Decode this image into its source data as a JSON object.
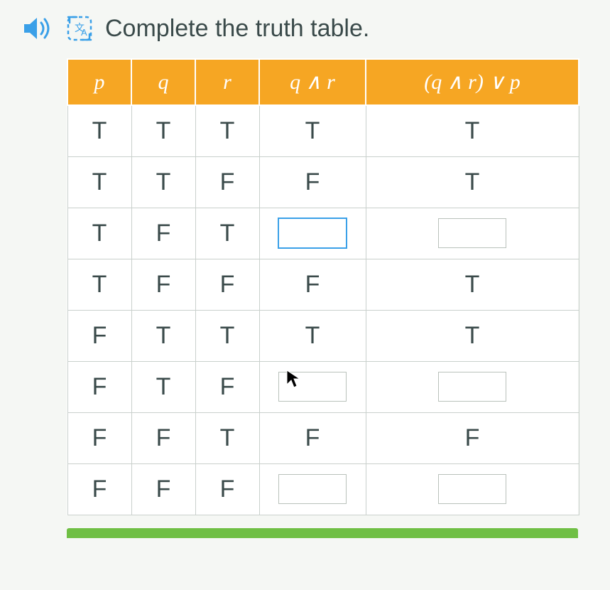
{
  "prompt": {
    "text": "Complete the truth table."
  },
  "icons": {
    "speaker_color": "#3aa0e8",
    "translate_stroke": "#3aa0e8"
  },
  "table": {
    "header_bg": "#f6a623",
    "header_fg": "#ffffff",
    "cell_border": "#c9d0cc",
    "columns": [
      {
        "label": "p",
        "width_class": "c-narrow"
      },
      {
        "label": "q",
        "width_class": "c-narrow"
      },
      {
        "label": "r",
        "width_class": "c-narrow"
      },
      {
        "label": "q ∧ r",
        "width_class": "c-mid"
      },
      {
        "label": "(q ∧ r) ∨ p",
        "width_class": "c-wide"
      }
    ],
    "rows": [
      {
        "cells": [
          {
            "v": "T"
          },
          {
            "v": "T"
          },
          {
            "v": "T"
          },
          {
            "v": "T"
          },
          {
            "v": "T"
          }
        ]
      },
      {
        "cells": [
          {
            "v": "T"
          },
          {
            "v": "T"
          },
          {
            "v": "F"
          },
          {
            "v": "F"
          },
          {
            "v": "T"
          }
        ]
      },
      {
        "cells": [
          {
            "v": "T"
          },
          {
            "v": "F"
          },
          {
            "v": "T"
          },
          {
            "input": true,
            "focused": true
          },
          {
            "input": true
          }
        ]
      },
      {
        "cells": [
          {
            "v": "T"
          },
          {
            "v": "F"
          },
          {
            "v": "F"
          },
          {
            "v": "F"
          },
          {
            "v": "T"
          }
        ]
      },
      {
        "cells": [
          {
            "v": "F"
          },
          {
            "v": "T"
          },
          {
            "v": "T"
          },
          {
            "v": "T"
          },
          {
            "v": "T"
          }
        ]
      },
      {
        "cells": [
          {
            "v": "F"
          },
          {
            "v": "T"
          },
          {
            "v": "F"
          },
          {
            "input": true,
            "cursor": true
          },
          {
            "input": true
          }
        ]
      },
      {
        "cells": [
          {
            "v": "F"
          },
          {
            "v": "F"
          },
          {
            "v": "T"
          },
          {
            "v": "F"
          },
          {
            "v": "F"
          }
        ]
      },
      {
        "cells": [
          {
            "v": "F"
          },
          {
            "v": "F"
          },
          {
            "v": "F"
          },
          {
            "input": true
          },
          {
            "input": true
          }
        ]
      }
    ]
  },
  "accent_green": "#6fbf44"
}
